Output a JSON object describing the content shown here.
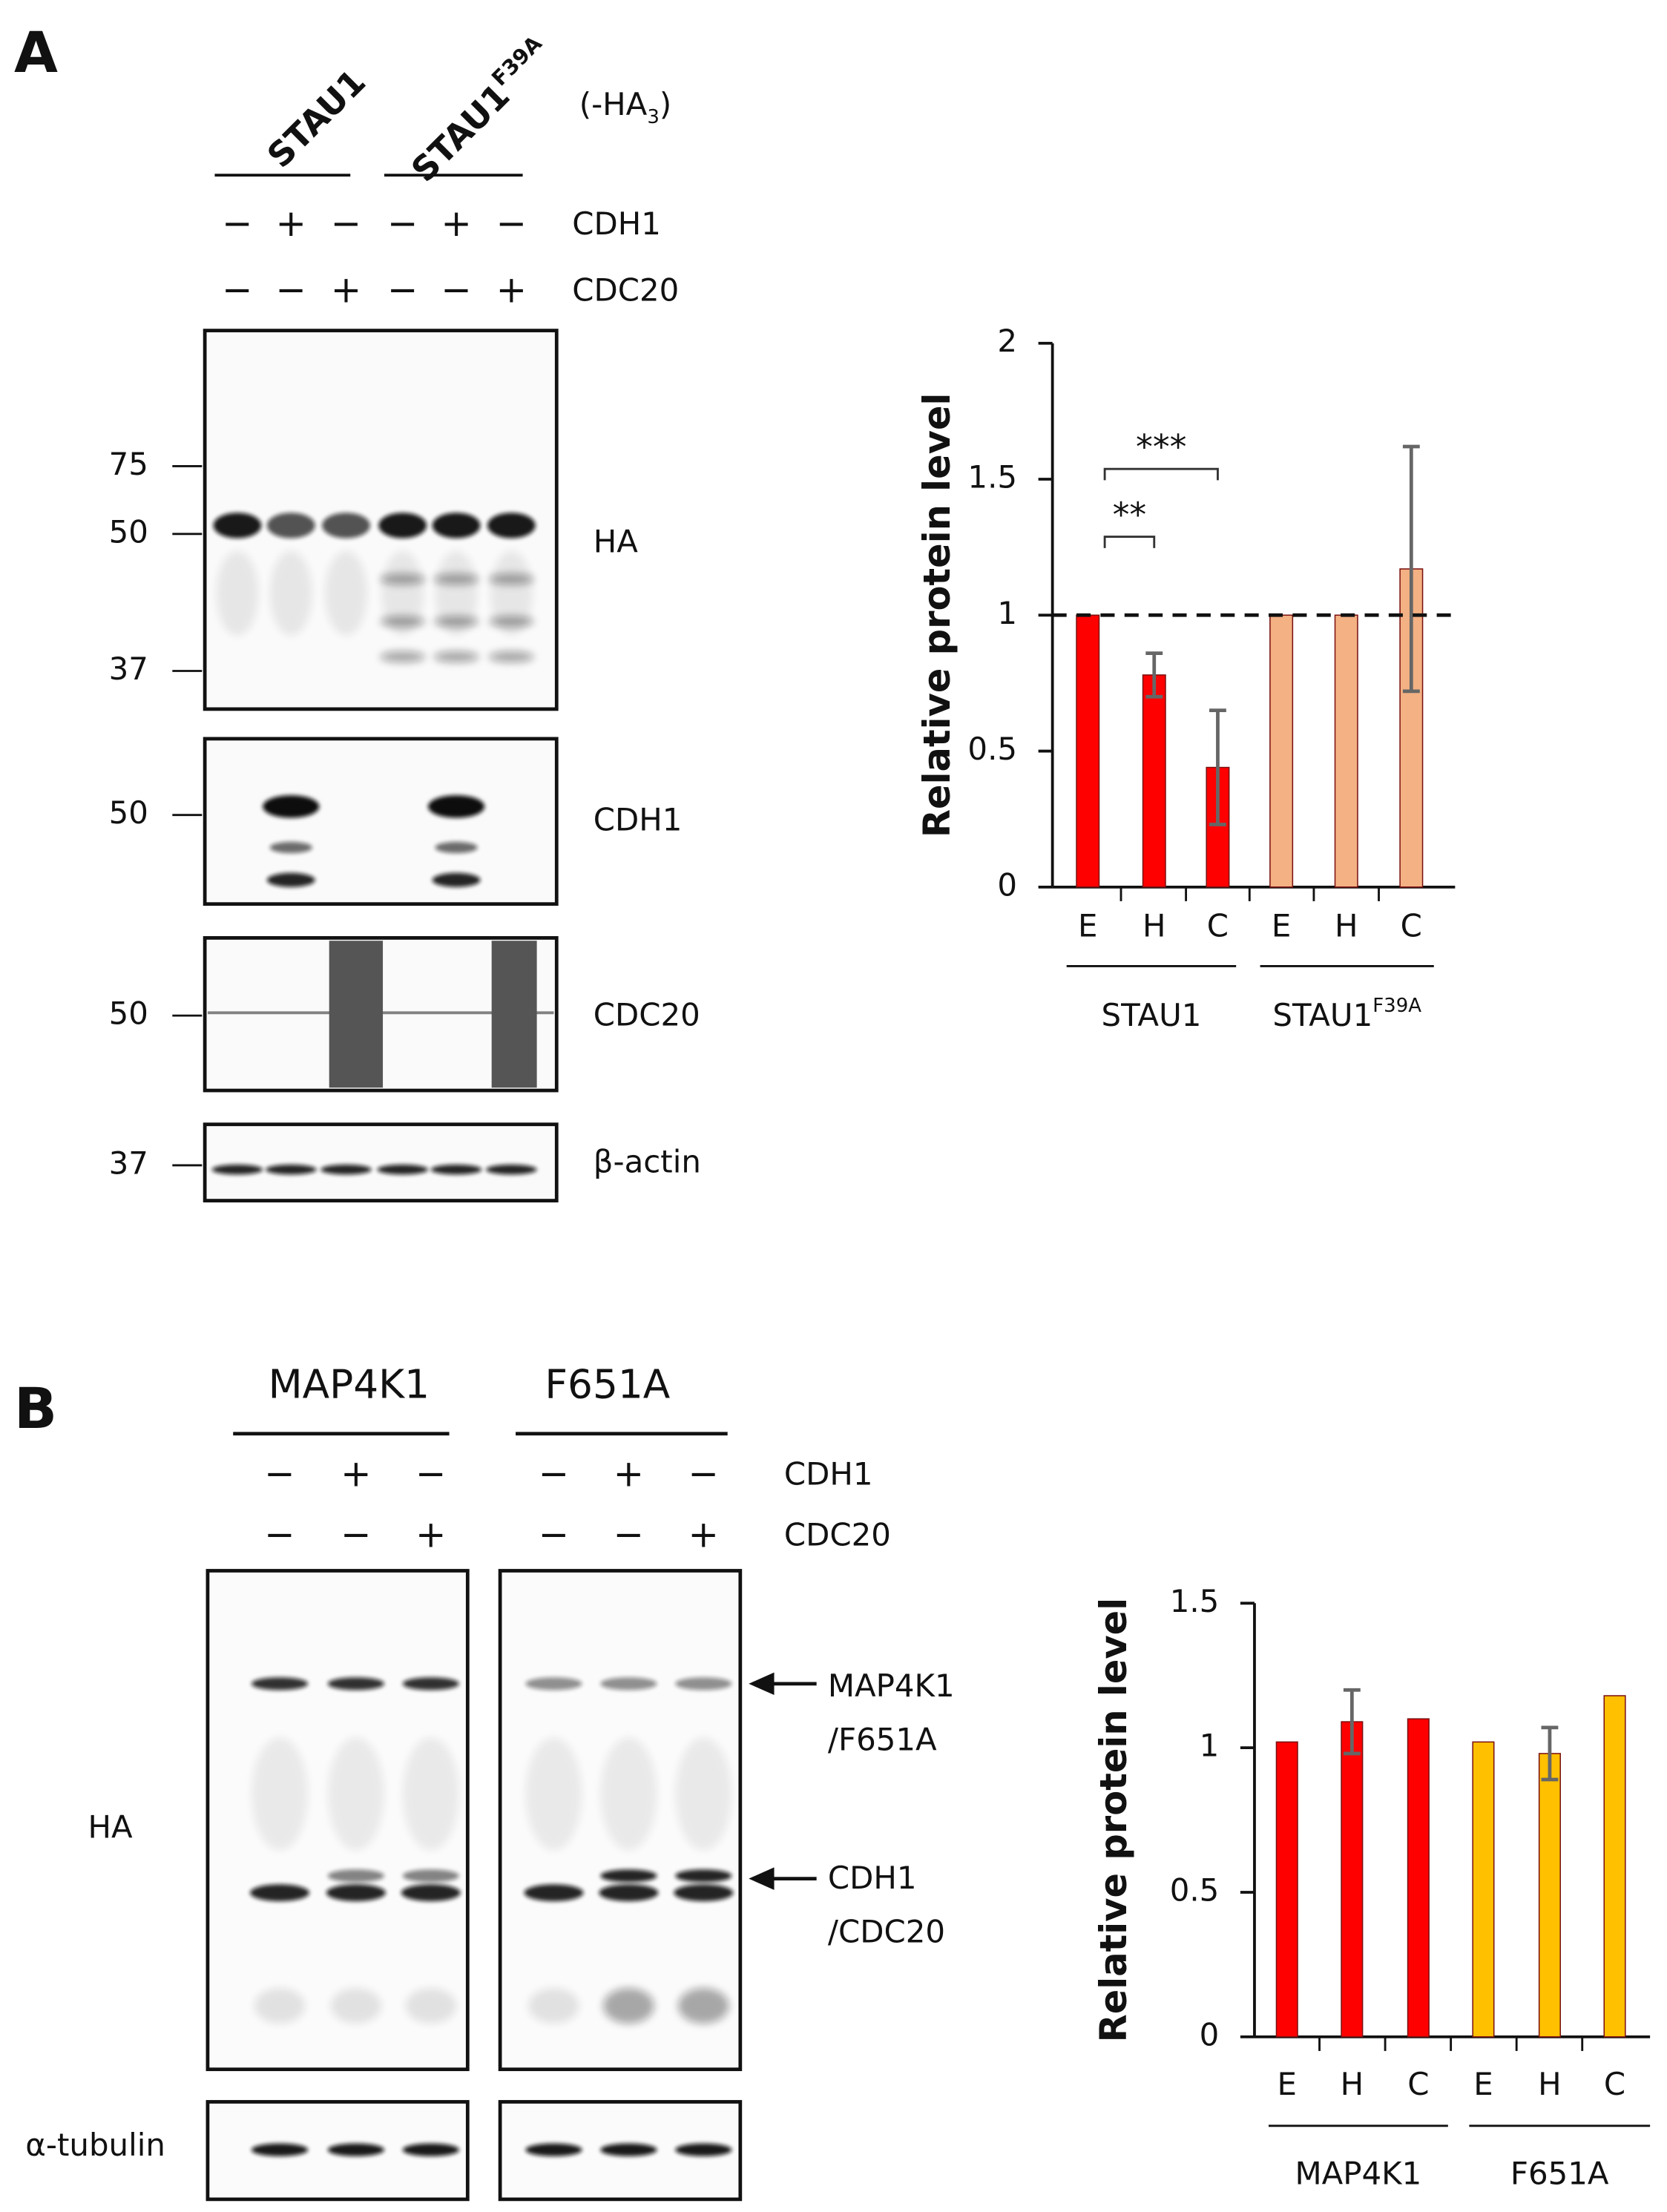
{
  "panel_a": {
    "letter": "A",
    "groups": [
      {
        "text": "STAU1"
      },
      {
        "text": "STAU1",
        "sup": "F39A"
      }
    ],
    "tag": {
      "text": "(-HA",
      "sub": "3",
      "end": ")"
    },
    "conditions": [
      {
        "label": "CDH1",
        "signs": [
          "−",
          "+",
          "−",
          "−",
          "+",
          "−"
        ]
      },
      {
        "label": "CDC20",
        "signs": [
          "−",
          "−",
          "+",
          "−",
          "−",
          "+"
        ]
      }
    ],
    "blots": [
      {
        "label": "HA",
        "markers": [
          "75",
          "50",
          "37"
        ]
      },
      {
        "label": "CDH1",
        "markers": [
          "50"
        ]
      },
      {
        "label": "CDC20",
        "markers": [
          "50"
        ]
      },
      {
        "label": "β-actin",
        "markers": [
          "37"
        ]
      }
    ]
  },
  "panel_b": {
    "letter": "B",
    "groups": [
      "MAP4K1",
      "F651A"
    ],
    "conditions": [
      {
        "label": "CDH1",
        "signs": [
          "−",
          "+",
          "−",
          "−",
          "+",
          "−"
        ]
      },
      {
        "label": "CDC20",
        "signs": [
          "−",
          "−",
          "+",
          "−",
          "−",
          "+"
        ]
      }
    ],
    "blots": [
      {
        "label": "HA"
      },
      {
        "label": "α-tubulin"
      }
    ],
    "arrows": [
      [
        "MAP4K1",
        "/F651A"
      ],
      [
        "CDH1",
        "/CDC20"
      ]
    ]
  },
  "chart_data": [
    {
      "type": "bar",
      "y_label": "Relative protein level",
      "categories": [
        "E",
        "H",
        "C",
        "E",
        "H",
        "C"
      ],
      "series": [
        {
          "name": "STAU1",
          "color": "#ff0000",
          "values": [
            1,
            0.78,
            0.44,
            null,
            null,
            null
          ],
          "errors": [
            0,
            0.08,
            0.21,
            null,
            null,
            null
          ]
        },
        {
          "name": "STAU1",
          "sup": "F39A",
          "color": "#f4b183",
          "values": [
            null,
            null,
            null,
            1,
            1,
            1.17
          ],
          "errors": [
            null,
            null,
            null,
            0,
            0,
            0.45
          ]
        }
      ],
      "ylim": [
        0,
        2
      ],
      "yticks": [
        0,
        0.5,
        1,
        1.5,
        2
      ],
      "refline": 1,
      "annotations": [
        "**",
        "***"
      ]
    },
    {
      "type": "bar",
      "y_label": "Relative protein level",
      "categories": [
        "E",
        "H",
        "C",
        "E",
        "H",
        "C"
      ],
      "series": [
        {
          "name": "MAP4K1",
          "color": "#ff0000",
          "values": [
            1.02,
            1.09,
            1.1,
            null,
            null,
            null
          ],
          "errors": [
            0,
            0.11,
            0,
            null,
            null,
            null
          ]
        },
        {
          "name": "F651A",
          "color": "#ffc000",
          "values": [
            null,
            null,
            null,
            1.02,
            0.98,
            1.18
          ],
          "errors": [
            null,
            null,
            null,
            0,
            0.09,
            0
          ]
        }
      ],
      "ylim": [
        0,
        1.5
      ],
      "yticks": [
        0,
        0.5,
        1,
        1.5
      ]
    }
  ]
}
